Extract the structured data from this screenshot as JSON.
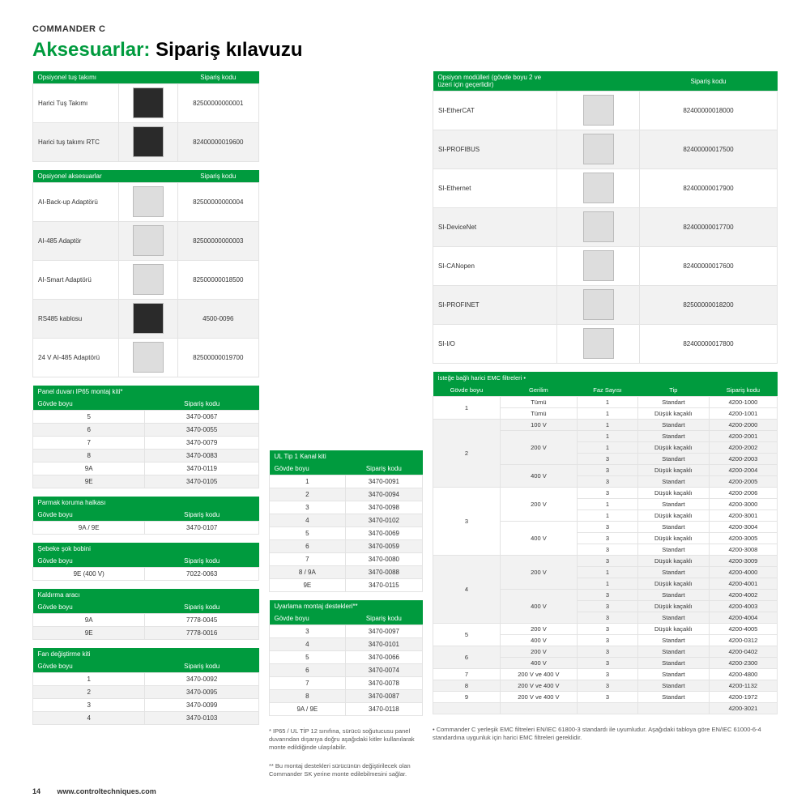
{
  "productLine": "COMMANDER C",
  "title": {
    "green": "Aksesuarlar:",
    "black": " Sipariş kılavuzu"
  },
  "colors": {
    "headerBg": "#009b3e",
    "altRow": "#f2f2f2"
  },
  "tables": {
    "keypad": {
      "headers": [
        "Opsiyonel tuş takımı",
        "",
        "Sipariş kodu"
      ],
      "rows": [
        {
          "name": "Harici Tuş Takımı",
          "code": "82500000000001",
          "dark": true
        },
        {
          "name": "Harici tuş takımı RTC",
          "code": "82400000019600",
          "dark": true
        }
      ]
    },
    "accessories": {
      "headers": [
        "Opsiyonel aksesuarlar",
        "",
        "Sipariş kodu"
      ],
      "rows": [
        {
          "name": "AI-Back-up Adaptörü",
          "code": "82500000000004"
        },
        {
          "name": "AI-485 Adaptör",
          "code": "82500000000003"
        },
        {
          "name": "AI-Smart Adaptörü",
          "code": "82500000018500"
        },
        {
          "name": "RS485 kablosu",
          "code": "4500-0096",
          "dark": true
        },
        {
          "name": "24 V AI-485 Adaptörü",
          "code": "82500000019700"
        }
      ]
    },
    "optionModules": {
      "headerLeft": "Opsiyon modülleri\n(gövde boyu 2 ve üzeri için geçerlidir)",
      "headerRight": "Sipariş kodu",
      "rows": [
        {
          "name": "SI-EtherCAT",
          "code": "82400000018000"
        },
        {
          "name": "SI-PROFIBUS",
          "code": "82400000017500"
        },
        {
          "name": "SI-Ethernet",
          "code": "82400000017900"
        },
        {
          "name": "SI-DeviceNet",
          "code": "82400000017700"
        },
        {
          "name": "SI-CANopen",
          "code": "82400000017600"
        },
        {
          "name": "SI-PROFINET",
          "code": "82500000018200"
        },
        {
          "name": "SI-I/O",
          "code": "82400000017800"
        }
      ]
    },
    "ip65": {
      "title": "Panel duvarı IP65 montaj kiti*",
      "headers": [
        "Gövde boyu",
        "Sipariş kodu"
      ],
      "rows": [
        [
          "5",
          "3470-0067"
        ],
        [
          "6",
          "3470-0055"
        ],
        [
          "7",
          "3470-0079"
        ],
        [
          "8",
          "3470-0083"
        ],
        [
          "9A",
          "3470-0119"
        ],
        [
          "9E",
          "3470-0105"
        ]
      ]
    },
    "fingerGuard": {
      "title": "Parmak koruma halkası",
      "headers": [
        "Gövde boyu",
        "Sipariş kodu"
      ],
      "rows": [
        [
          "9A / 9E",
          "3470-0107"
        ]
      ]
    },
    "lineChoke": {
      "title": "Şebeke şok bobini",
      "headers": [
        "Gövde boyu",
        "Sipariş kodu"
      ],
      "rows": [
        [
          "9E (400 V)",
          "7022-0063"
        ]
      ]
    },
    "lifting": {
      "title": "Kaldırma aracı",
      "headers": [
        "Gövde boyu",
        "Sipariş kodu"
      ],
      "rows": [
        [
          "9A",
          "7778-0045"
        ],
        [
          "9E",
          "7778-0016"
        ]
      ]
    },
    "fanKit": {
      "title": "Fan değiştirme kiti",
      "headers": [
        "Gövde boyu",
        "Sipariş kodu"
      ],
      "rows": [
        [
          "1",
          "3470-0092"
        ],
        [
          "2",
          "3470-0095"
        ],
        [
          "3",
          "3470-0099"
        ],
        [
          "4",
          "3470-0103"
        ]
      ]
    },
    "ulType1": {
      "title": "UL Tip 1 Kanal kiti",
      "headers": [
        "Gövde boyu",
        "Sipariş kodu"
      ],
      "rows": [
        [
          "1",
          "3470-0091"
        ],
        [
          "2",
          "3470-0094"
        ],
        [
          "3",
          "3470-0098"
        ],
        [
          "4",
          "3470-0102"
        ],
        [
          "5",
          "3470-0069"
        ],
        [
          "6",
          "3470-0059"
        ],
        [
          "7",
          "3470-0080"
        ],
        [
          "8 / 9A",
          "3470-0088"
        ],
        [
          "9E",
          "3470-0115"
        ]
      ]
    },
    "spacing": {
      "title": "Uyarlama montaj destekleri**",
      "headers": [
        "Gövde boyu",
        "Sipariş kodu"
      ],
      "rows": [
        [
          "3",
          "3470-0097"
        ],
        [
          "4",
          "3470-0101"
        ],
        [
          "5",
          "3470-0066"
        ],
        [
          "6",
          "3470-0074"
        ],
        [
          "7",
          "3470-0078"
        ],
        [
          "8",
          "3470-0087"
        ],
        [
          "9A / 9E",
          "3470-0118"
        ]
      ]
    },
    "emc": {
      "title": "İsteğe bağlı harici EMC filtreleri •",
      "headers": [
        "Gövde boyu",
        "Gerilim",
        "Faz Sayısı",
        "Tip",
        "Sipariş kodu"
      ],
      "rows": [
        {
          "fb": "1",
          "fbspan": 2,
          "v": "Tümü",
          "p": "1",
          "t": "Standart",
          "c": "4200-1000"
        },
        {
          "v": "Tümü",
          "p": "1",
          "t": "Düşük kaçaklı",
          "c": "4200-1001"
        },
        {
          "fb": "2",
          "fbspan": 6,
          "v": "100 V",
          "vspan": 1,
          "p": "1",
          "t": "Standart",
          "c": "4200-2000",
          "alt": true
        },
        {
          "v": "200 V",
          "vspan": 3,
          "p": "1",
          "t": "Standart",
          "c": "4200-2001",
          "alt": true
        },
        {
          "p": "1",
          "t": "Düşük kaçaklı",
          "c": "4200-2002",
          "alt": true
        },
        {
          "p": "3",
          "t": "Standart",
          "c": "4200-2003",
          "alt": true
        },
        {
          "v": "400 V",
          "vspan": 2,
          "p": "3",
          "t": "Düşük kaçaklı",
          "c": "4200-2004",
          "alt": true
        },
        {
          "p": "3",
          "t": "Standart",
          "c": "4200-2005",
          "alt": true
        },
        {
          "fb": "3",
          "fbspan": 6,
          "v": "200 V",
          "vspan": 3,
          "p": "3",
          "t": "Düşük kaçaklı",
          "c": "4200-2006"
        },
        {
          "p": "1",
          "t": "Standart",
          "c": "4200-3000"
        },
        {
          "p": "1",
          "t": "Düşük kaçaklı",
          "c": "4200-3001"
        },
        {
          "v": "400 V",
          "vspan": 3,
          "p": "3",
          "t": "Standart",
          "c": "4200-3004"
        },
        {
          "p": "3",
          "t": "Düşük kaçaklı",
          "c": "4200-3005"
        },
        {
          "p": "3",
          "t": "Standart",
          "c": "4200-3008"
        },
        {
          "fb": "4",
          "fbspan": 6,
          "v": "200 V",
          "vspan": 3,
          "p": "3",
          "t": "Düşük kaçaklı",
          "c": "4200-3009",
          "alt": true
        },
        {
          "p": "1",
          "t": "Standart",
          "c": "4200-4000",
          "alt": true
        },
        {
          "p": "1",
          "t": "Düşük kaçaklı",
          "c": "4200-4001",
          "alt": true
        },
        {
          "v": "400 V",
          "vspan": 3,
          "p": "3",
          "t": "Standart",
          "c": "4200-4002",
          "alt": true
        },
        {
          "p": "3",
          "t": "Düşük kaçaklı",
          "c": "4200-4003",
          "alt": true
        },
        {
          "p": "3",
          "t": "Standart",
          "c": "4200-4004",
          "alt": true
        },
        {
          "fb": "5",
          "fbspan": 2,
          "v": "200 V",
          "p": "3",
          "t": "Düşük kaçaklı",
          "c": "4200-4005"
        },
        {
          "v": "400 V",
          "p": "3",
          "t": "Standart",
          "c": "4200-0312"
        },
        {
          "fb": "6",
          "fbspan": 2,
          "v": "200 V",
          "p": "3",
          "t": "Standart",
          "c": "4200-0402",
          "alt": true
        },
        {
          "v": "400 V",
          "p": "3",
          "t": "Standart",
          "c": "4200-2300",
          "alt": true
        },
        {
          "fb": "7",
          "v": "200 V ve 400 V",
          "p": "3",
          "t": "Standart",
          "c": "4200-4800"
        },
        {
          "fb": "8",
          "v": "200 V ve 400 V",
          "p": "3",
          "t": "Standart",
          "c": "4200-1132",
          "alt": true
        },
        {
          "fb": "9",
          "v": "200 V ve 400 V",
          "p": "3",
          "t": "Standart",
          "c": "4200-1972"
        },
        {
          "fb": "",
          "v": "",
          "p": "",
          "t": "",
          "c": "4200-3021",
          "alt": true
        }
      ]
    }
  },
  "notes": {
    "n1": "* IP65 / UL TİP 12 sınıfına, sürücü soğutucusu panel duvarından dışarıya doğru aşağıdaki kitler kullanılarak monte edildiğinde ulaşılabilir.",
    "n2": "** Bu montaj destekleri sürücünün değiştirilecek olan Commander SK yerine monte edilebilmesini sağlar.",
    "n3": "• Commander C yerleşik EMC filtreleri EN/IEC 61800-3 standardı ile uyumludur. Aşağıdaki tabloya göre EN/IEC 61000-6-4 standardına uygunluk için harici EMC filtreleri gereklidir."
  },
  "footer": {
    "page": "14",
    "url": "www.controltechniques.com"
  }
}
